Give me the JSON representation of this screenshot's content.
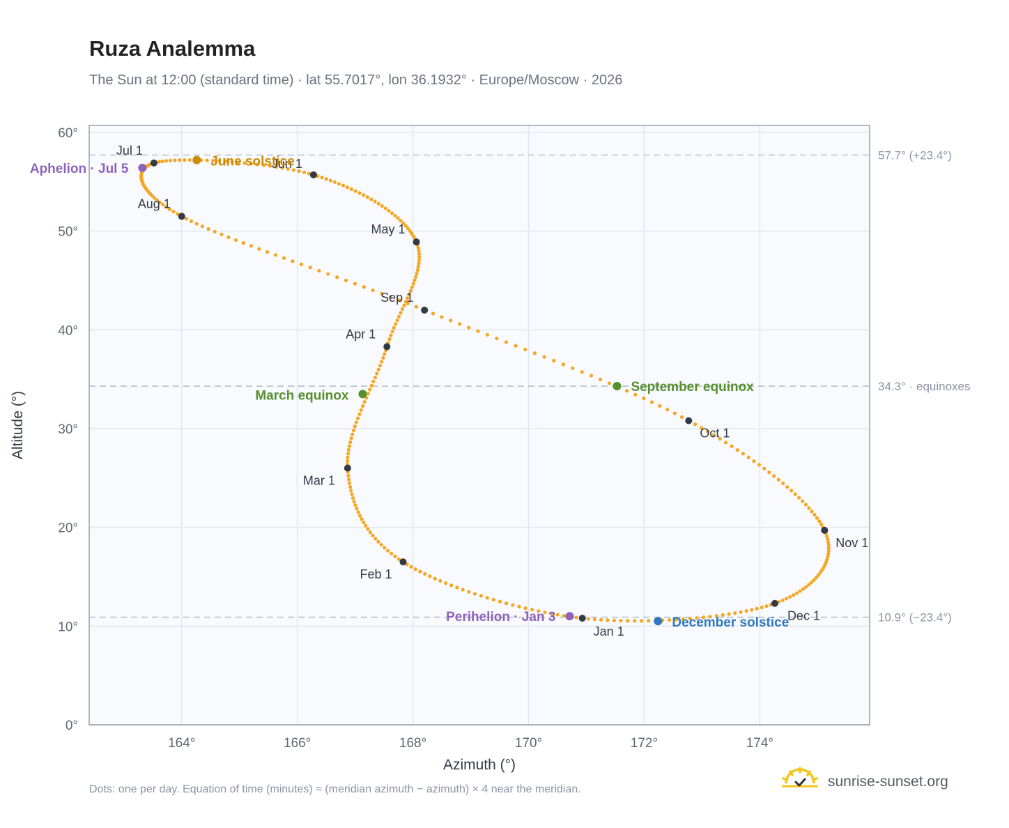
{
  "title": "Ruza Analemma",
  "subtitle": "The Sun at 12:00 (standard time) · lat 55.7017°, lon 36.1932° · Europe/Moscow · 2026",
  "footnote": "Dots: one per day. Equation of time (minutes) ≈ (meridian azimuth − azimuth) × 4 near the meridian.",
  "brand": {
    "text": "sunrise-sunset.org",
    "icon": "sun-logo-icon"
  },
  "colors": {
    "curve": "#f5a623",
    "month_marker": "#333a45",
    "aphelion_perihelion": "#8e63b9",
    "june_solstice": "#cf8a06",
    "december_solstice": "#2f78c0",
    "equinox": "#55902f",
    "reference_line": "#b5c0cb",
    "plot_background": "#f8fafd"
  },
  "chart_data": {
    "type": "scatter",
    "xlabel": "Azimuth (°)",
    "ylabel": "Altitude (°)",
    "xlim": [
      162.4,
      175.9
    ],
    "ylim": [
      0,
      60.7
    ],
    "x_ticks": [
      164,
      166,
      168,
      170,
      172,
      174
    ],
    "x_tick_labels": [
      "164°",
      "166°",
      "168°",
      "170°",
      "172°",
      "174°"
    ],
    "y_ticks": [
      0,
      10,
      20,
      30,
      40,
      50,
      60
    ],
    "y_tick_labels": [
      "0°",
      "10°",
      "20°",
      "30°",
      "40°",
      "50°",
      "60°"
    ],
    "grid": true,
    "reference_lines": [
      {
        "y": 57.7,
        "label": "57.7° (+23.4°)"
      },
      {
        "y": 34.3,
        "label": "34.3° · equinoxes"
      },
      {
        "y": 10.9,
        "label": "10.9° (−23.4°)"
      }
    ],
    "month_markers": [
      {
        "label": "Jan 1",
        "x": 170.93,
        "y": 10.8
      },
      {
        "label": "Feb 1",
        "x": 167.83,
        "y": 16.5
      },
      {
        "label": "Mar 1",
        "x": 166.87,
        "y": 26.0
      },
      {
        "label": "Apr 1",
        "x": 167.55,
        "y": 38.3
      },
      {
        "label": "May 1",
        "x": 168.06,
        "y": 48.9
      },
      {
        "label": "Jun 1",
        "x": 166.28,
        "y": 55.7
      },
      {
        "label": "Jul 1",
        "x": 163.52,
        "y": 56.9
      },
      {
        "label": "Aug 1",
        "x": 164.0,
        "y": 51.5
      },
      {
        "label": "Sep 1",
        "x": 168.2,
        "y": 42.0
      },
      {
        "label": "Oct 1",
        "x": 172.77,
        "y": 30.8
      },
      {
        "label": "Nov 1",
        "x": 175.12,
        "y": 19.7
      },
      {
        "label": "Dec 1",
        "x": 174.26,
        "y": 12.3
      }
    ],
    "events": [
      {
        "label": "Aphelion · Jul 5",
        "x": 163.32,
        "y": 56.4,
        "kind": "aphelion_perihelion"
      },
      {
        "label": "June solstice",
        "x": 164.26,
        "y": 57.2,
        "kind": "june_solstice"
      },
      {
        "label": "March equinox",
        "x": 167.13,
        "y": 33.5,
        "kind": "equinox"
      },
      {
        "label": "September equinox",
        "x": 171.53,
        "y": 34.3,
        "kind": "equinox"
      },
      {
        "label": "Perihelion · Jan 3",
        "x": 170.71,
        "y": 11.0,
        "kind": "aphelion_perihelion"
      },
      {
        "label": "December solstice",
        "x": 172.24,
        "y": 10.5,
        "kind": "december_solstice"
      }
    ]
  }
}
